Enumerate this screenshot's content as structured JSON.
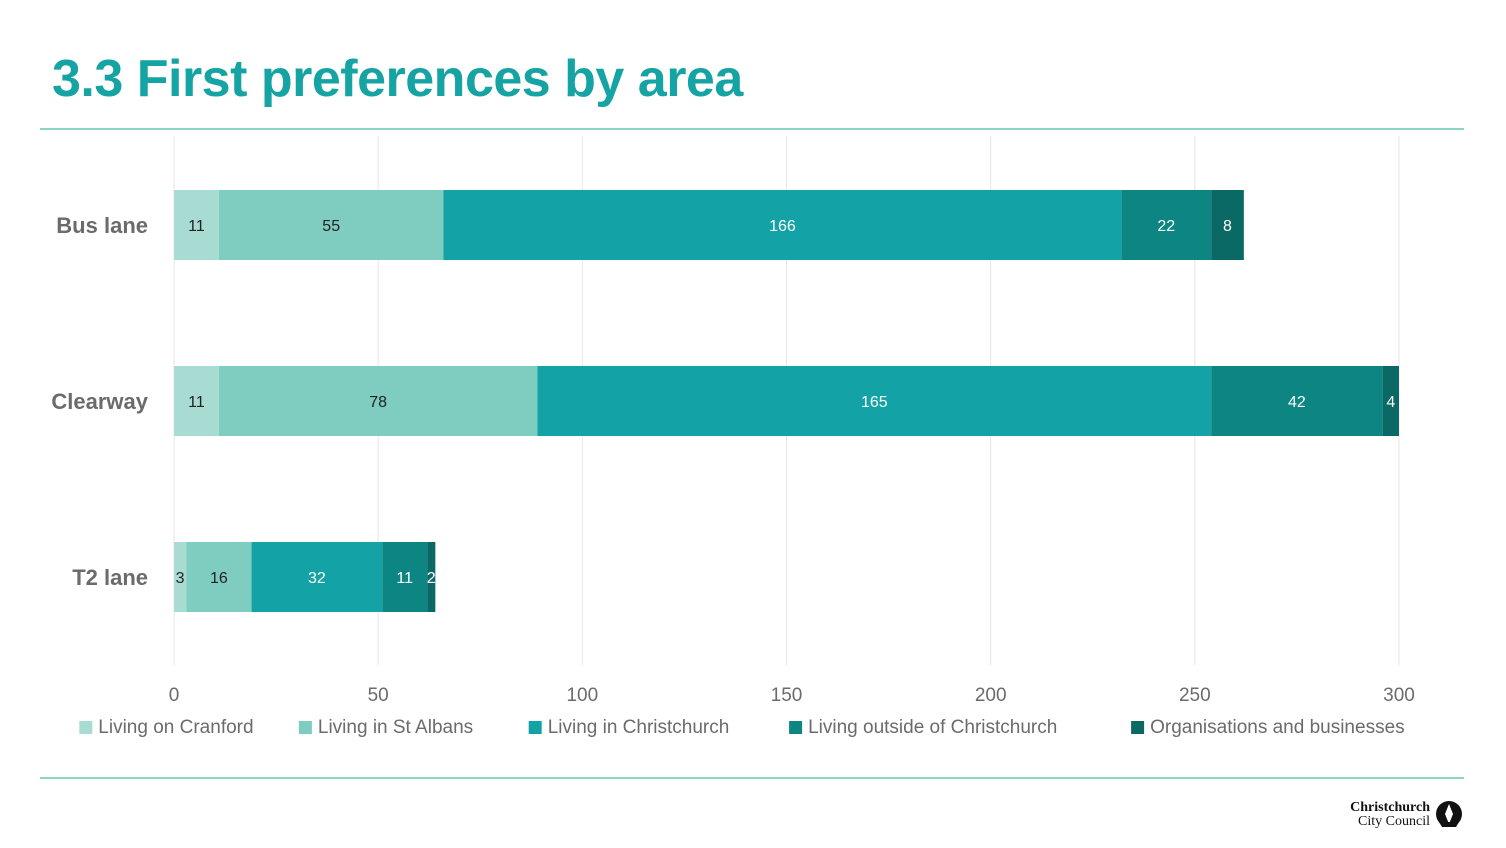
{
  "page": {
    "title": "3.3 First preferences by area",
    "brand_line1": "Christchurch",
    "brand_line2": "City Council",
    "brand_icon": "christchurch-city-council-logo",
    "accent_color": "#16a3a3",
    "rule_color": "#8fd3c7"
  },
  "chart_data": {
    "type": "bar",
    "orientation": "horizontal",
    "stacked": true,
    "title": "",
    "xlabel": "",
    "ylabel": "",
    "categories": [
      "Bus lane",
      "Clearway",
      "T2 lane"
    ],
    "xlim": [
      0,
      300
    ],
    "x_ticks": [
      0,
      50,
      100,
      150,
      200,
      250,
      300
    ],
    "grid": true,
    "legend_position": "bottom",
    "series": [
      {
        "name": "Living on Cranford",
        "color": "#a8dbd2",
        "values": [
          11,
          11,
          3
        ]
      },
      {
        "name": "Living in St Albans",
        "color": "#7ecdc0",
        "values": [
          55,
          78,
          16
        ]
      },
      {
        "name": "Living in Christchurch",
        "color": "#13a3a6",
        "values": [
          166,
          165,
          32
        ]
      },
      {
        "name": "Living outside of Christchurch",
        "color": "#0d8683",
        "values": [
          22,
          42,
          11
        ]
      },
      {
        "name": "Organisations and businesses",
        "color": "#0a6865",
        "values": [
          8,
          4,
          2
        ]
      }
    ]
  }
}
